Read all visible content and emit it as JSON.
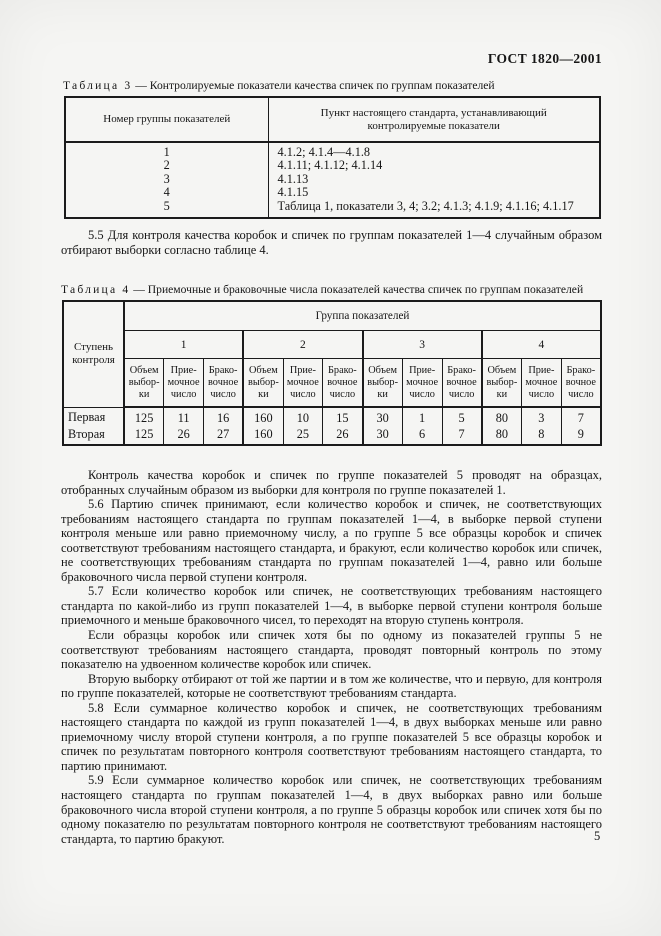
{
  "doc": {
    "header": "ГОСТ 1820—2001",
    "page_number": "5"
  },
  "table3": {
    "caption_label": "Таблица 3",
    "caption_rest": "— Контролируемые показатели качества спичек по группам показателей",
    "col1_header": "Номер группы показателей",
    "col2_header": "Пункт настоящего стандарта, устанавливающий\nконтролируемые показатели",
    "rows": [
      {
        "group": "1",
        "clause": "4.1.2; 4.1.4—4.1.8"
      },
      {
        "group": "2",
        "clause": "4.1.11; 4.1.12; 4.1.14"
      },
      {
        "group": "3",
        "clause": "4.1.13"
      },
      {
        "group": "4",
        "clause": "4.1.15"
      },
      {
        "group": "5",
        "clause": "Таблица 1, показатели 3, 4; 3.2; 4.1.3; 4.1.9; 4.1.16; 4.1.17"
      }
    ]
  },
  "para_5_5": "5.5 Для контроля качества коробок и спичек по группам показателей 1—4 случайным образом отбирают выборки согласно таблице 4.",
  "table4": {
    "caption_label": "Таблица 4",
    "caption_rest": "— Приемочные и браковочные числа показателей качества спичек по группам показателей",
    "stub_header": "Ступень\nконтроля",
    "group_header": "Группа показателей",
    "groups": [
      "1",
      "2",
      "3",
      "4"
    ],
    "subcols": [
      "Объем\nвыбор-\nки",
      "Прие-\nмочное\nчисло",
      "Брако-\nвочное\nчисло"
    ],
    "rows": [
      {
        "label": "Первая",
        "values": [
          "125",
          "11",
          "16",
          "160",
          "10",
          "15",
          "30",
          "1",
          "5",
          "80",
          "3",
          "7"
        ]
      },
      {
        "label": "Вторая",
        "values": [
          "125",
          "26",
          "27",
          "160",
          "25",
          "26",
          "30",
          "6",
          "7",
          "80",
          "8",
          "9"
        ]
      }
    ]
  },
  "paragraphs": [
    "Контроль качества коробок и спичек по группе показателей 5 проводят на образцах, отобранных случайным образом из выборки для контроля по группе показателей 1.",
    "5.6 Партию спичек принимают, если количество коробок и спичек, не соответствующих требованиям настоящего стандарта по группам показателей 1—4, в выборке первой ступени контроля меньше или равно приемочному числу, а по группе 5 все образцы коробок и спичек соответствуют требованиям настоящего стандарта, и бракуют, если количество коробок или спичек, не соответствующих требованиям стандарта по группам показателей 1—4, равно или больше браковочного числа первой ступени контроля.",
    "5.7 Если количество коробок или спичек, не соответствующих требованиям настоящего стандарта по какой-либо из групп показателей 1—4, в выборке первой ступени контроля больше приемочного и меньше браковочного чисел, то переходят на вторую ступень контроля.",
    "Если образцы коробок или спичек хотя бы по одному из показателей группы 5 не соответствуют требованиям настоящего стандарта, проводят повторный контроль по этому показателю на удвоенном количестве коробок или спичек.",
    "Вторую выборку отбирают от той же партии и в том же количестве, что и первую, для контроля по группе показателей, которые не соответствуют требованиям стандарта.",
    "5.8 Если суммарное количество коробок и спичек, не соответствующих требованиям настоящего стандарта по каждой из групп показателей 1—4, в двух выборках меньше или равно приемочному числу второй ступени контроля, а по группе показателей 5 все образцы коробок и спичек по результатам повторного контроля соответствуют требованиям настоящего стандарта, то партию принимают.",
    "5.9 Если суммарное количество коробок или спичек, не соответствующих требованиям настоящего стандарта по группам показателей 1—4, в двух выборках равно или больше браковочного числа второй ступени контроля, а по группе 5 образцы коробок или спичек хотя бы по одному показателю по результатам повторного контроля не соответствуют требованиям настоящего стандарта, то партию бракуют."
  ]
}
